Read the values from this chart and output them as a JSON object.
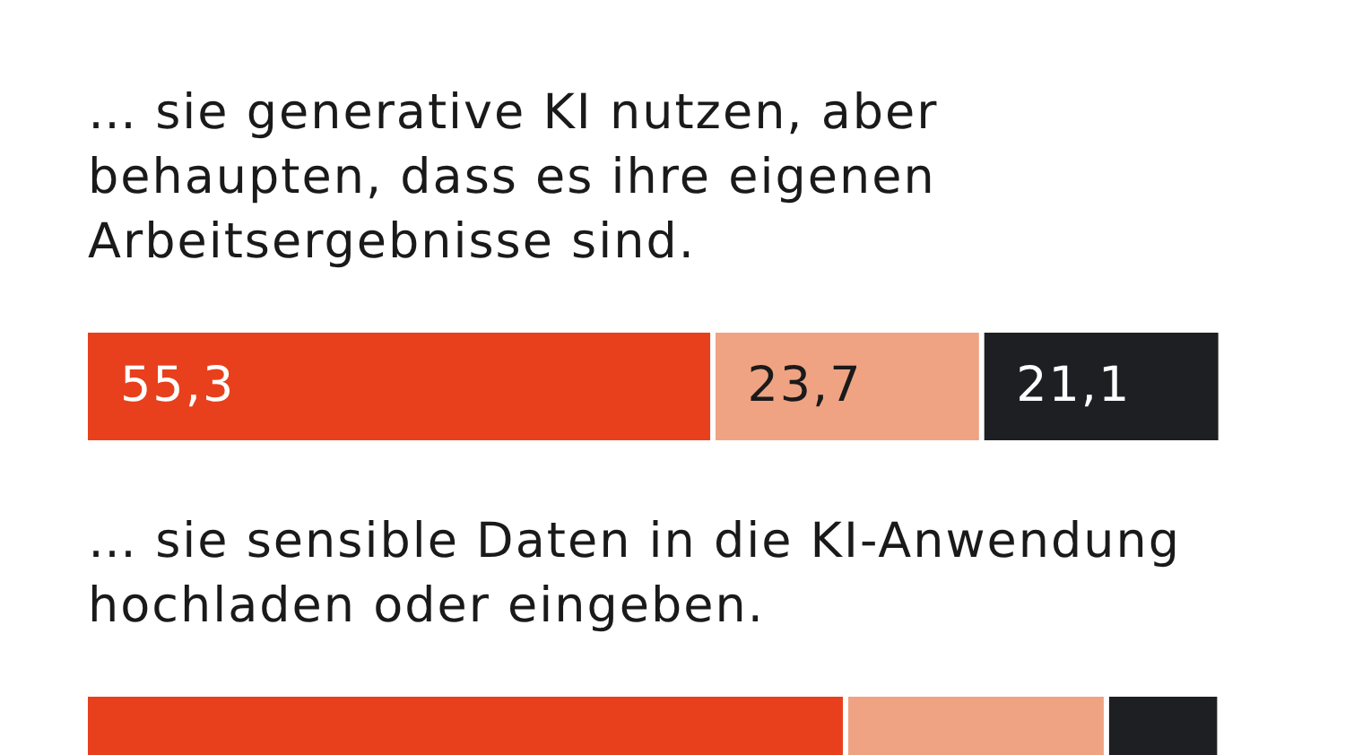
{
  "chart_data": {
    "type": "bar",
    "orientation": "horizontal",
    "stacked": true,
    "tick_labels": "y",
    "legend": false,
    "grid": false,
    "categories": [
      "… sie generative KI nutzen, aber behaupten, dass es ihre eigenen Arbeitsergebnisse sind.",
      "… sie sensible Daten in die KI-Anwendung hochladen oder eingeben."
    ],
    "series": [
      {
        "color": "#e8401c",
        "values": [
          55.3,
          67.0
        ],
        "value_labels": [
          "55,3",
          null
        ]
      },
      {
        "color": "#efa383",
        "values": [
          23.7,
          23.0
        ],
        "value_labels": [
          "23,7",
          null
        ]
      },
      {
        "color": "#1e1f23",
        "values": [
          21.1,
          10.0
        ],
        "value_labels": [
          "21,1",
          null
        ]
      }
    ]
  }
}
